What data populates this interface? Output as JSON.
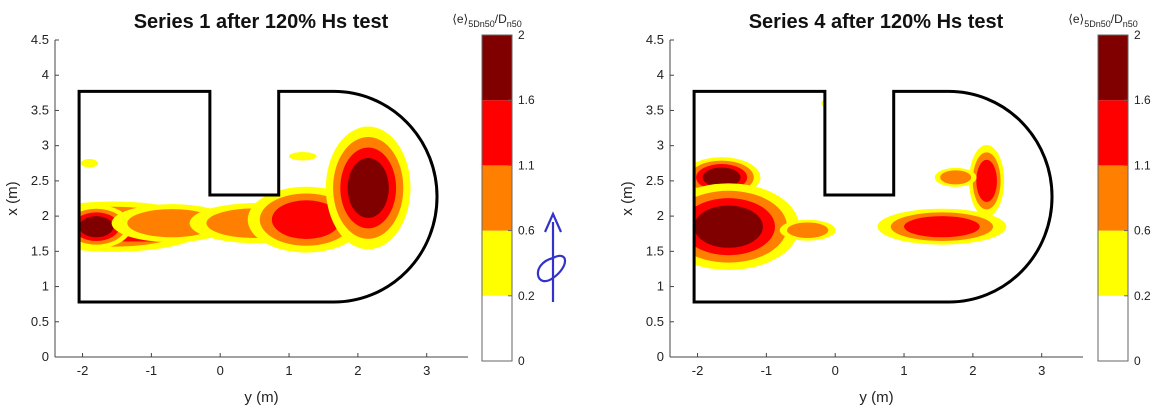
{
  "chart_data": [
    {
      "type": "heatmap",
      "title": "Series 1 after 120% Hs test",
      "xlabel": "y (m)",
      "ylabel": "x (m)",
      "xlim": [
        -2.4,
        3.6
      ],
      "ylim": [
        0,
        4.5
      ],
      "xticks": [
        -2,
        -1,
        0,
        1,
        2,
        3
      ],
      "yticks": [
        0,
        0.5,
        1,
        1.5,
        2,
        2.5,
        3,
        3.5,
        4,
        4.5
      ],
      "grid": false,
      "colorbar": {
        "title_main": "⟨e⟩",
        "title_sub1": "5Dn50",
        "title_mid": "/D",
        "title_sub2": "n50",
        "levels": [
          0,
          0.2,
          0.6,
          1.1,
          1.6,
          2
        ],
        "colors": [
          "#ffffff",
          "#ffff00",
          "#ff8000",
          "#ff0000",
          "#800000"
        ]
      },
      "damage_zones": [
        {
          "y": -1.55,
          "x": 1.85,
          "level": 1.1,
          "shape": "rect",
          "w": 1.6,
          "h": 0.42
        },
        {
          "y": -1.8,
          "x": 1.85,
          "level": 1.6,
          "shape": "ellipse",
          "w": 0.5,
          "h": 0.3
        },
        {
          "y": -0.7,
          "x": 1.9,
          "level": 0.6,
          "shape": "ellipse",
          "w": 1.3,
          "h": 0.4
        },
        {
          "y": 0.5,
          "x": 1.9,
          "level": 0.6,
          "shape": "ellipse",
          "w": 1.4,
          "h": 0.42
        },
        {
          "y": 1.25,
          "x": 1.95,
          "level": 1.1,
          "shape": "ellipse",
          "w": 1.0,
          "h": 0.55
        },
        {
          "y": 2.15,
          "x": 2.4,
          "level": 1.6,
          "shape": "ellipse",
          "w": 0.6,
          "h": 0.85
        },
        {
          "y": -1.9,
          "x": 2.75,
          "level": 0.2,
          "shape": "ellipse",
          "w": 0.25,
          "h": 0.12
        },
        {
          "y": 1.2,
          "x": 2.85,
          "level": 0.2,
          "shape": "ellipse",
          "w": 0.4,
          "h": 0.12
        }
      ]
    },
    {
      "type": "heatmap",
      "title": "Series 4 after 120% Hs test",
      "xlabel": "y (m)",
      "ylabel": "x (m)",
      "xlim": [
        -2.4,
        3.6
      ],
      "ylim": [
        0,
        4.5
      ],
      "xticks": [
        -2,
        -1,
        0,
        1,
        2,
        3
      ],
      "yticks": [
        0,
        0.5,
        1,
        1.5,
        2,
        2.5,
        3,
        3.5,
        4,
        4.5
      ],
      "grid": false,
      "colorbar": {
        "title_main": "⟨e⟩",
        "title_sub1": "5Dn50",
        "title_mid": "/D",
        "title_sub2": "n50",
        "levels": [
          0,
          0.2,
          0.6,
          1.1,
          1.6,
          2
        ],
        "colors": [
          "#ffffff",
          "#ffff00",
          "#ff8000",
          "#ff0000",
          "#800000"
        ]
      },
      "damage_zones": [
        {
          "y": -1.65,
          "x": 2.55,
          "level": 1.6,
          "shape": "ellipse",
          "w": 0.55,
          "h": 0.28
        },
        {
          "y": -1.55,
          "x": 1.85,
          "level": 1.6,
          "shape": "ellipse",
          "w": 1.0,
          "h": 0.6
        },
        {
          "y": -0.4,
          "x": 1.8,
          "level": 0.6,
          "shape": "ellipse",
          "w": 0.6,
          "h": 0.22
        },
        {
          "y": 1.55,
          "x": 1.85,
          "level": 1.1,
          "shape": "ellipse",
          "w": 1.1,
          "h": 0.3
        },
        {
          "y": 2.2,
          "x": 2.5,
          "level": 1.1,
          "shape": "ellipse",
          "w": 0.3,
          "h": 0.6
        },
        {
          "y": 1.75,
          "x": 2.55,
          "level": 0.6,
          "shape": "ellipse",
          "w": 0.45,
          "h": 0.2
        },
        {
          "y": -0.15,
          "x": 3.6,
          "level": 0.2,
          "shape": "ellipse",
          "w": 0.1,
          "h": 0.1
        }
      ]
    }
  ],
  "wave_direction_symbol": "wave-direction-arrow-icon"
}
